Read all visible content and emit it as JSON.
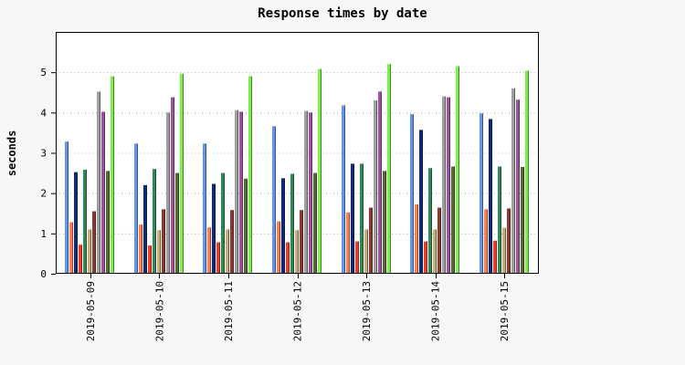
{
  "chart_data": {
    "type": "bar",
    "title": "Response times by date",
    "xlabel": "",
    "ylabel": "seconds",
    "ylim": [
      0,
      6
    ],
    "yticks": [
      0,
      1,
      2,
      3,
      4,
      5
    ],
    "grid": "horizontal dotted",
    "legend": "none",
    "categories": [
      "2019-05-09",
      "2019-05-10",
      "2019-05-11",
      "2019-05-12",
      "2019-05-13",
      "2019-05-14",
      "2019-05-15"
    ],
    "series": [
      {
        "color": "#6495ed",
        "values": [
          3.28,
          3.23,
          3.23,
          3.66,
          4.18,
          3.96,
          3.98
        ]
      },
      {
        "color": "#ff7f50",
        "values": [
          1.28,
          1.22,
          1.15,
          1.3,
          1.52,
          1.72,
          1.6
        ]
      },
      {
        "color": "#0f2a7a",
        "values": [
          2.52,
          2.2,
          2.23,
          2.37,
          2.73,
          3.57,
          3.84
        ]
      },
      {
        "color": "#f03c28",
        "values": [
          0.72,
          0.7,
          0.78,
          0.78,
          0.8,
          0.8,
          0.82
        ]
      },
      {
        "color": "#2e8b57",
        "values": [
          2.58,
          2.6,
          2.5,
          2.48,
          2.73,
          2.62,
          2.66
        ]
      },
      {
        "color": "#c8ae7a",
        "values": [
          1.1,
          1.08,
          1.1,
          1.08,
          1.1,
          1.1,
          1.14
        ]
      },
      {
        "color": "#8b3a32",
        "values": [
          1.55,
          1.6,
          1.58,
          1.58,
          1.64,
          1.64,
          1.62
        ]
      },
      {
        "color": "#a0a0a0",
        "values": [
          4.52,
          4.0,
          4.06,
          4.04,
          4.3,
          4.4,
          4.6
        ]
      },
      {
        "color": "#a052a0",
        "values": [
          4.02,
          4.38,
          4.02,
          4.0,
          4.52,
          4.38,
          4.32
        ]
      },
      {
        "color": "#556b2f",
        "values": [
          2.55,
          2.5,
          2.36,
          2.5,
          2.55,
          2.66,
          2.65
        ]
      },
      {
        "color": "#7cf04a",
        "values": [
          4.9,
          4.96,
          4.9,
          5.08,
          5.2,
          5.15,
          5.04
        ]
      }
    ]
  }
}
